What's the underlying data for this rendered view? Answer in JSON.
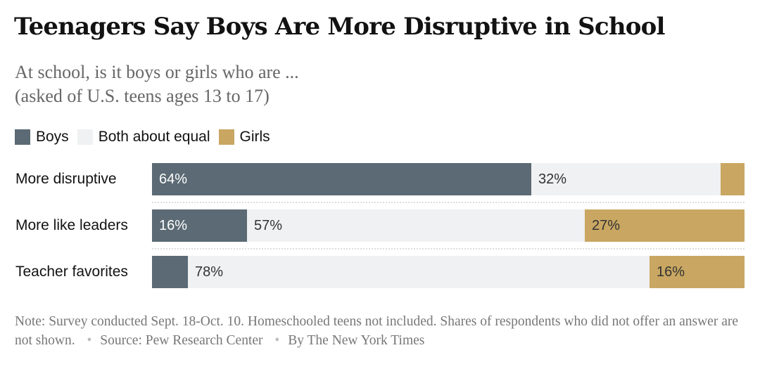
{
  "title": "Teenagers Say Boys Are More Disruptive in School",
  "subtitle_line1": "At school, is it boys or girls who are ...",
  "subtitle_line2": "(asked of U.S. teens ages 13 to 17)",
  "colors": {
    "boys": "#5b6a74",
    "equal": "#eff1f2",
    "girls": "#c9a762"
  },
  "chart_data": {
    "type": "bar",
    "orientation": "horizontal",
    "stacked": true,
    "categories": [
      "More disruptive",
      "More like leaders",
      "Teacher favorites"
    ],
    "series": [
      {
        "name": "Boys",
        "values": [
          64,
          16,
          6
        ],
        "labels": [
          "64%",
          "16%",
          ""
        ]
      },
      {
        "name": "Both about equal",
        "values": [
          32,
          57,
          78
        ],
        "labels": [
          "32%",
          "57%",
          "78%"
        ]
      },
      {
        "name": "Girls",
        "values": [
          4,
          27,
          16
        ],
        "labels": [
          "",
          "27%",
          "16%"
        ]
      }
    ],
    "xlim": [
      0,
      100
    ],
    "legend_position": "top-left"
  },
  "note": {
    "text": "Note: Survey conducted Sept. 18-Oct. 10. Homeschooled teens not included. Shares of respondents who did not offer an answer are not shown.",
    "sep": "•",
    "source": "Source: Pew Research Center",
    "byline": "By The New York Times"
  }
}
